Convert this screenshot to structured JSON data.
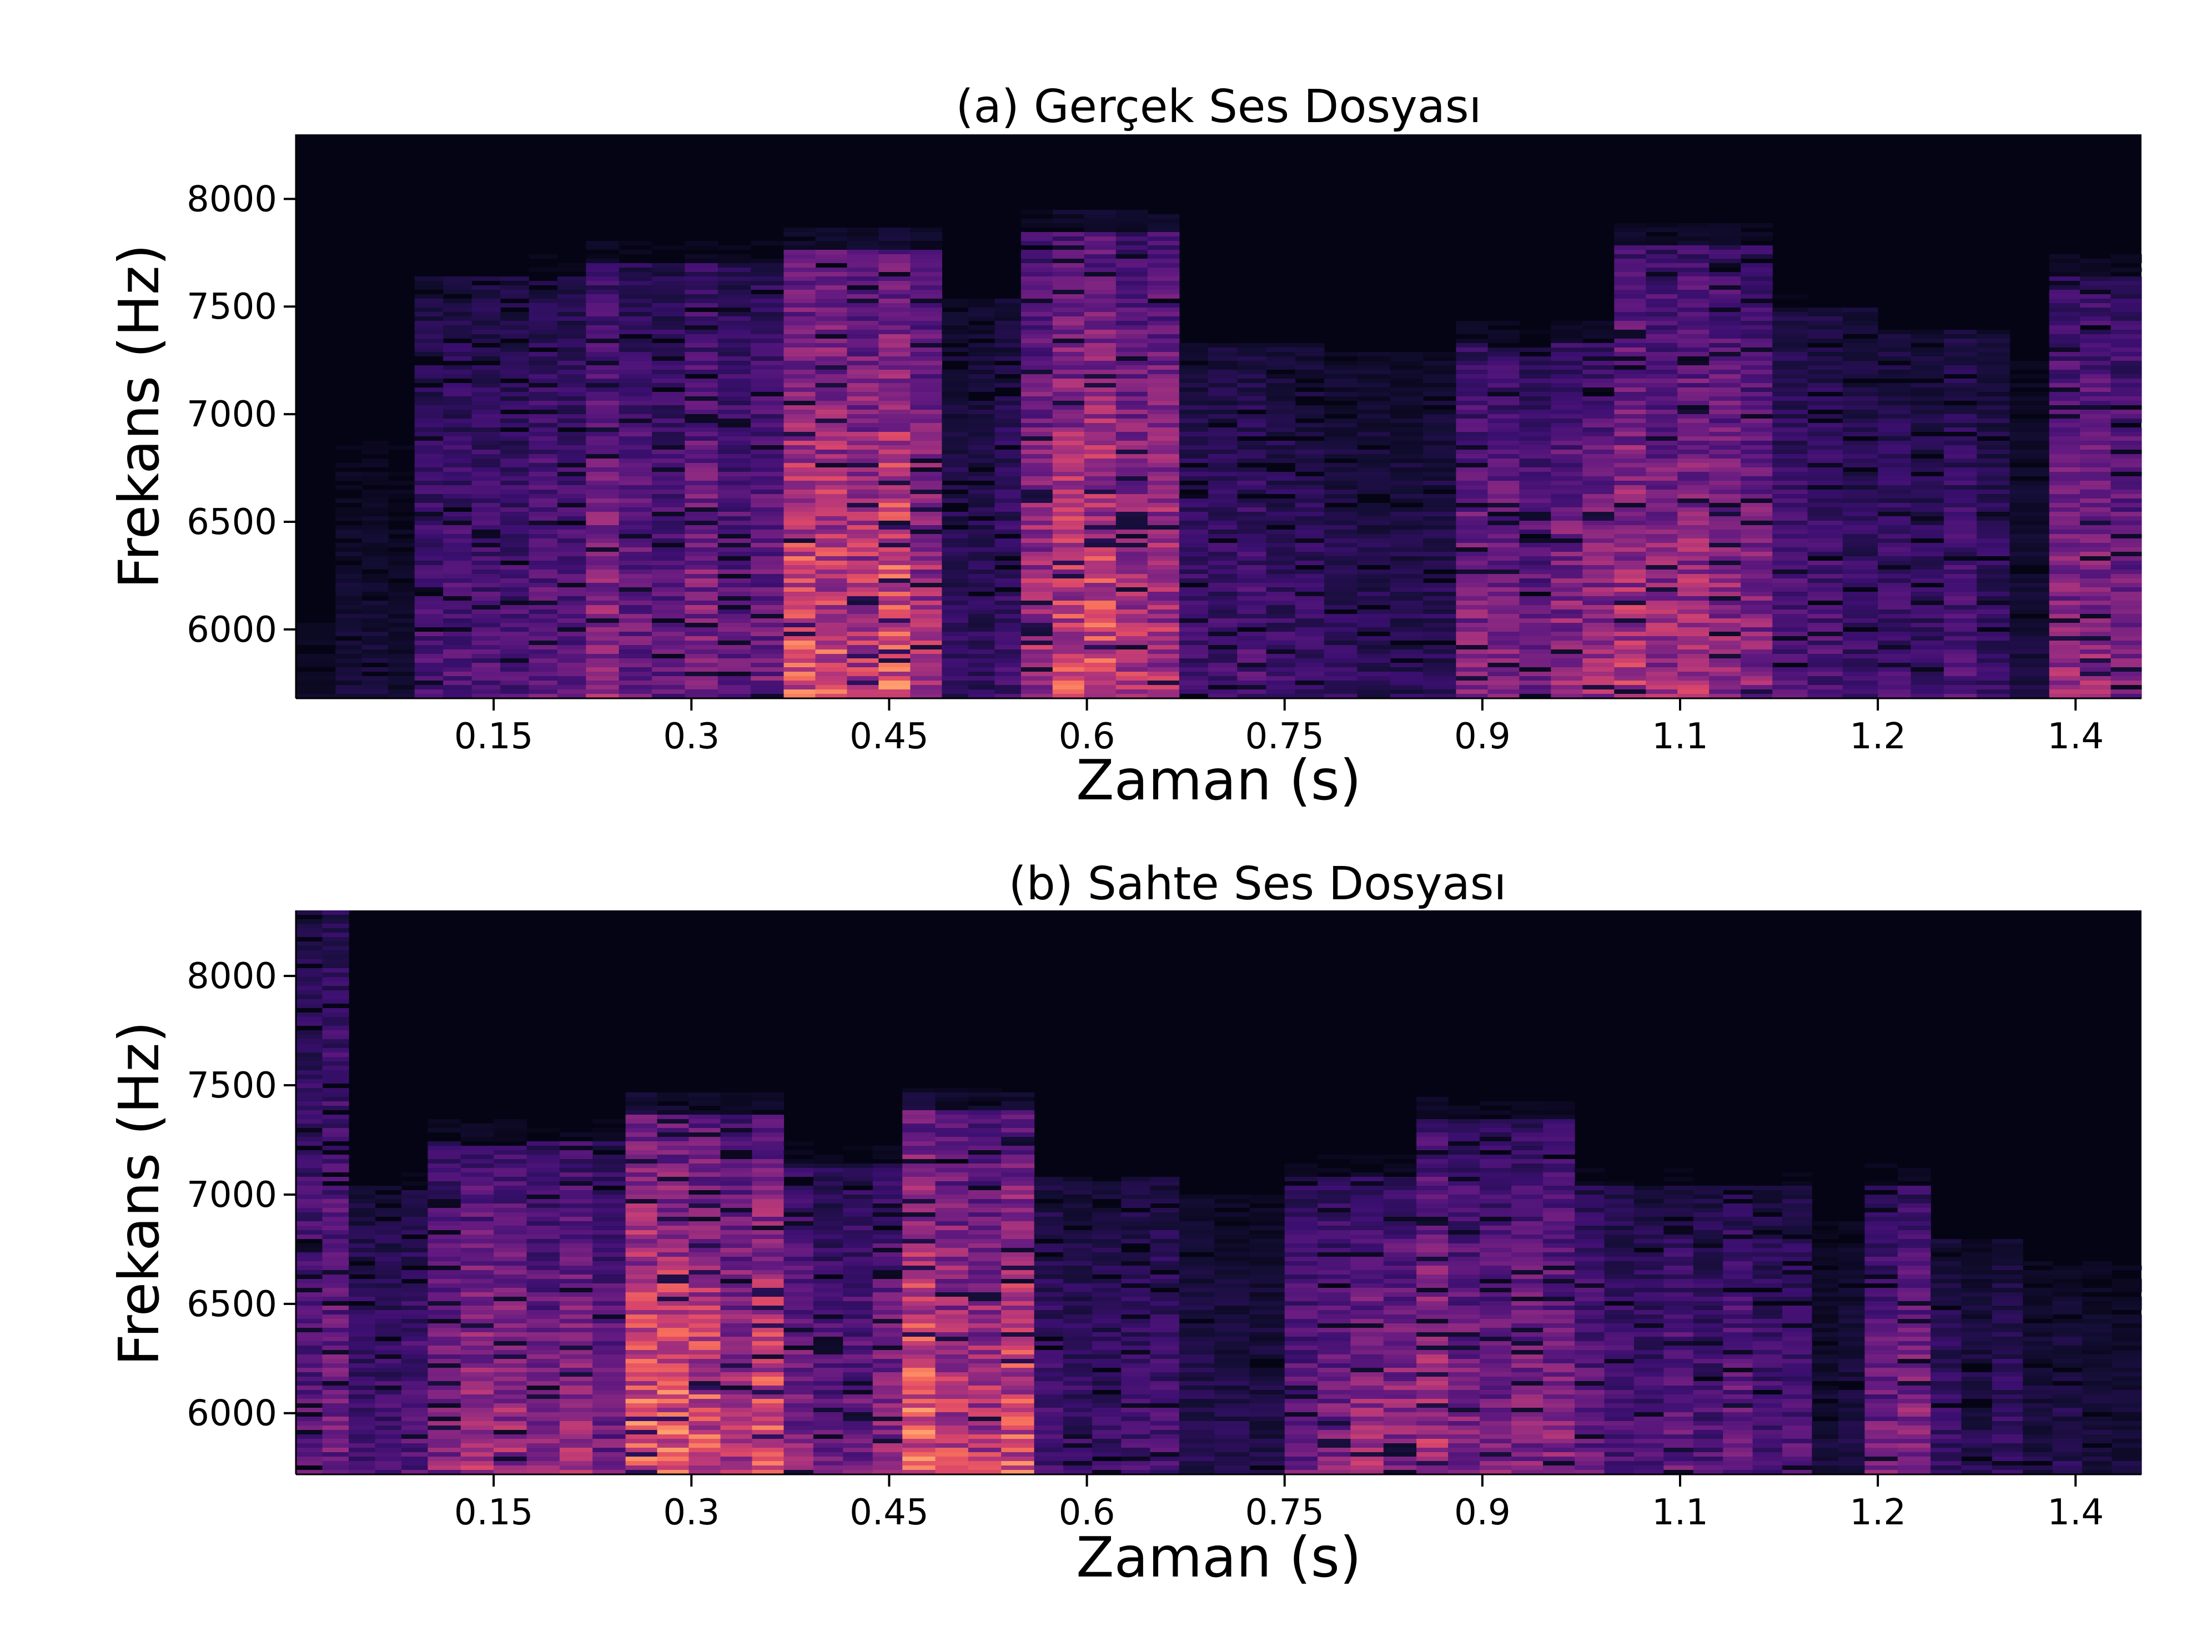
{
  "colors": {
    "background": "#ffffff",
    "plot_background": "#050414",
    "colormap": [
      "#000004",
      "#140e36",
      "#3b0f70",
      "#641a80",
      "#8c2981",
      "#b73779",
      "#de4968",
      "#f7705c",
      "#fe9f6d"
    ]
  },
  "chart_data": [
    {
      "type": "heatmap",
      "title": "(a) Gerçek Ses Dosyası",
      "xlabel": "Zaman (s)",
      "ylabel": "Frekans (Hz)",
      "xlim": [
        0.0,
        1.4
      ],
      "ylim": [
        5680,
        8300
      ],
      "x_ticks": [
        0.15,
        0.3,
        0.45,
        0.6,
        0.75,
        0.9,
        1.05,
        1.2,
        1.35
      ],
      "x_tick_labels": [
        "0.15",
        "0.3",
        "0.45",
        "0.6",
        "0.75",
        "0.9",
        "1.1",
        "1.2",
        "1.4"
      ],
      "y_ticks": [
        6000,
        6500,
        7000,
        7500,
        8000
      ],
      "y_tick_labels": [
        "6000",
        "6500",
        "7000",
        "7500",
        "8000"
      ],
      "colorscale": "magma",
      "grid": false,
      "energy_segments": [
        {
          "t0": 0.0,
          "t1": 0.03,
          "top": 6300,
          "peak": 0.12
        },
        {
          "t0": 0.03,
          "t1": 0.09,
          "top": 6900,
          "peak": 0.15
        },
        {
          "t0": 0.09,
          "t1": 0.22,
          "top": 7650,
          "peak": 0.42
        },
        {
          "t0": 0.22,
          "t1": 0.37,
          "top": 7720,
          "peak": 0.52
        },
        {
          "t0": 0.37,
          "t1": 0.49,
          "top": 7780,
          "peak": 0.85
        },
        {
          "t0": 0.49,
          "t1": 0.55,
          "top": 7550,
          "peak": 0.3
        },
        {
          "t0": 0.55,
          "t1": 0.67,
          "top": 7850,
          "peak": 0.82
        },
        {
          "t0": 0.67,
          "t1": 0.78,
          "top": 7350,
          "peak": 0.32
        },
        {
          "t0": 0.78,
          "t1": 0.88,
          "top": 7300,
          "peak": 0.22
        },
        {
          "t0": 0.88,
          "t1": 1.0,
          "top": 7350,
          "peak": 0.55
        },
        {
          "t0": 1.0,
          "t1": 1.12,
          "top": 7800,
          "peak": 0.62
        },
        {
          "t0": 1.12,
          "t1": 1.2,
          "top": 7500,
          "peak": 0.36
        },
        {
          "t0": 1.2,
          "t1": 1.3,
          "top": 7400,
          "peak": 0.32
        },
        {
          "t0": 1.3,
          "t1": 1.33,
          "top": 7300,
          "peak": 0.18
        },
        {
          "t0": 1.33,
          "t1": 1.4,
          "top": 7650,
          "peak": 0.58
        }
      ]
    },
    {
      "type": "heatmap",
      "title": "(b) Sahte Ses Dosyası",
      "xlabel": "Zaman (s)",
      "ylabel": "Frekans (Hz)",
      "xlim": [
        0.0,
        1.4
      ],
      "ylim": [
        5720,
        8300
      ],
      "x_ticks": [
        0.15,
        0.3,
        0.45,
        0.6,
        0.75,
        0.9,
        1.05,
        1.2,
        1.35
      ],
      "x_tick_labels": [
        "0.15",
        "0.3",
        "0.45",
        "0.6",
        "0.75",
        "0.9",
        "1.1",
        "1.2",
        "1.4"
      ],
      "y_ticks": [
        6000,
        6500,
        7000,
        7500,
        8000
      ],
      "y_tick_labels": [
        "6000",
        "6500",
        "7000",
        "7500",
        "8000"
      ],
      "colorscale": "magma",
      "grid": false,
      "energy_segments": [
        {
          "t0": 0.0,
          "t1": 0.04,
          "top": 8300,
          "peak": 0.45
        },
        {
          "t0": 0.04,
          "t1": 0.1,
          "top": 7050,
          "peak": 0.38
        },
        {
          "t0": 0.1,
          "t1": 0.25,
          "top": 7250,
          "peak": 0.6
        },
        {
          "t0": 0.25,
          "t1": 0.37,
          "top": 7380,
          "peak": 0.82
        },
        {
          "t0": 0.37,
          "t1": 0.46,
          "top": 7150,
          "peak": 0.52
        },
        {
          "t0": 0.46,
          "t1": 0.56,
          "top": 7400,
          "peak": 0.85
        },
        {
          "t0": 0.56,
          "t1": 0.67,
          "top": 7100,
          "peak": 0.32
        },
        {
          "t0": 0.67,
          "t1": 0.75,
          "top": 7000,
          "peak": 0.22
        },
        {
          "t0": 0.75,
          "t1": 0.85,
          "top": 7100,
          "peak": 0.58
        },
        {
          "t0": 0.85,
          "t1": 0.97,
          "top": 7350,
          "peak": 0.62
        },
        {
          "t0": 0.97,
          "t1": 1.15,
          "top": 7050,
          "peak": 0.42
        },
        {
          "t0": 1.15,
          "t1": 1.19,
          "top": 6900,
          "peak": 0.18
        },
        {
          "t0": 1.19,
          "t1": 1.24,
          "top": 7050,
          "peak": 0.5
        },
        {
          "t0": 1.24,
          "t1": 1.31,
          "top": 6800,
          "peak": 0.26
        },
        {
          "t0": 1.31,
          "t1": 1.4,
          "top": 6700,
          "peak": 0.2
        }
      ]
    }
  ]
}
